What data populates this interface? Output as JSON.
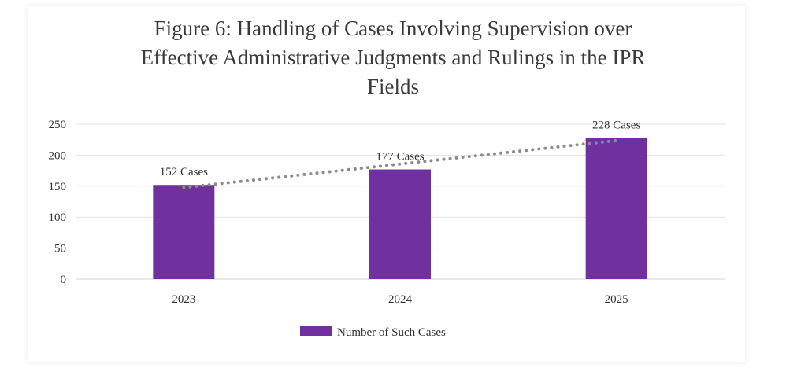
{
  "chart_data": {
    "type": "bar",
    "title_lines": [
      "Figure 6: Handling of Cases Involving Supervision over",
      "Effective Administrative Judgments and  Rulings in the IPR",
      "Fields"
    ],
    "categories": [
      "2023",
      "2024",
      "2025"
    ],
    "series": [
      {
        "name": "Number of Such Cases",
        "values": [
          152,
          177,
          228
        ],
        "data_labels": [
          "152 Cases",
          "177 Cases",
          "228 Cases"
        ],
        "color": "#7030a0"
      }
    ],
    "trendline": {
      "type": "linear",
      "style": "dotted",
      "color": "#8c8c8c"
    },
    "ylim": [
      0,
      250
    ],
    "yticks": [
      0,
      50,
      100,
      150,
      200,
      250
    ],
    "grid": true,
    "legend": "bottom-center",
    "xlabel": "",
    "ylabel": ""
  }
}
